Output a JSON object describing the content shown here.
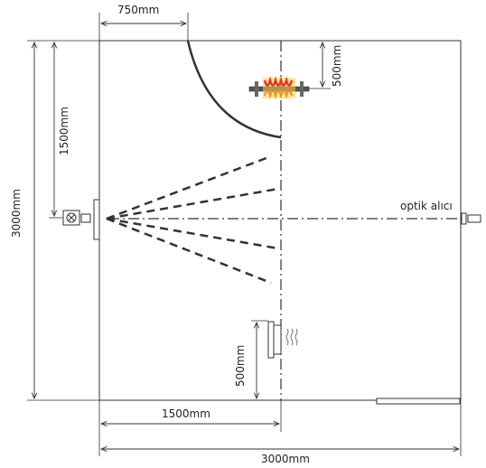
{
  "labels": {
    "top_width": "750mm",
    "left_total_height": "3000mm",
    "left_half_height": "1500mm",
    "heater_offset": "500mm",
    "bottom_offset": "500mm",
    "bottom_half_width": "1500mm",
    "bottom_total_width": "3000mm",
    "receiver": "optik alıcı"
  },
  "colors": {
    "line": "#333333",
    "heater_orange": "#f08c2a",
    "heater_red": "#e3352a",
    "heater_yellow": "#f8cf43"
  },
  "icons": {
    "emitter": "optical-emitter-icon",
    "receiver": "optical-receiver-icon",
    "heater": "heater-icon",
    "heat_source": "heat-source-icon"
  }
}
